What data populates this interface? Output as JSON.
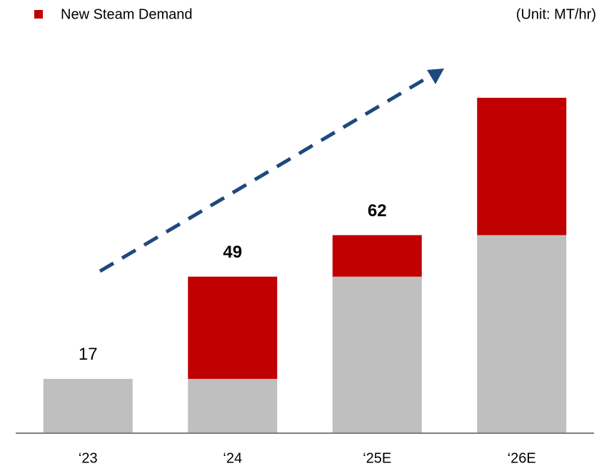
{
  "chart_data": {
    "type": "stacked_bar",
    "legend_text": "New Steam Demand",
    "unit_label": "(Unit: MT/hr)",
    "categories": [
      "‘23",
      "‘24",
      "‘25E",
      "‘26E"
    ],
    "series": [
      {
        "color": "#bfbfbf",
        "values": [
          17,
          17,
          49,
          62
        ]
      },
      {
        "name": "New Steam Demand",
        "color": "#c00000",
        "values": [
          0,
          32,
          13,
          43
        ]
      }
    ],
    "totals": [
      17,
      49,
      62,
      null
    ],
    "total_label_bold": [
      false,
      true,
      true,
      false
    ]
  }
}
